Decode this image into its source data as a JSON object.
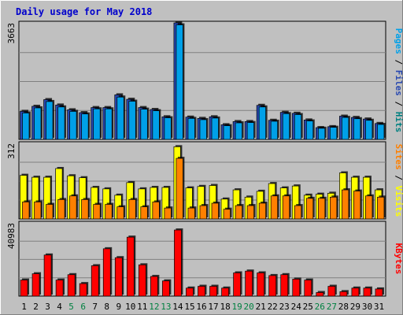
{
  "title": "Daily usage for May 2018",
  "colors": {
    "background": "#c0c0c0",
    "pages": "#00a0e8",
    "files": "#2848b0",
    "hits": "#008080",
    "visits": "#ffff00",
    "sites": "#ff8000",
    "kbytes": "#ff0000",
    "title": "#0000cc",
    "weekend_label": "#008040"
  },
  "chart_data": [
    {
      "type": "bar",
      "panel": "hits-files-pages",
      "ymax_label": "3663",
      "ylim": [
        0,
        3663
      ],
      "right_label": [
        {
          "text": "Pages",
          "color": "#00a0e8"
        },
        {
          "text": " / ",
          "color": "#000000"
        },
        {
          "text": "Files",
          "color": "#2848b0"
        },
        {
          "text": " / ",
          "color": "#000000"
        },
        {
          "text": "Hits",
          "color": "#008080"
        }
      ],
      "series": [
        {
          "name": "Hits",
          "values": [
            880,
            1040,
            1250,
            1080,
            930,
            840,
            1000,
            1000,
            1400,
            1260,
            1000,
            940,
            710,
            3663,
            700,
            660,
            710,
            460,
            560,
            560,
            1070,
            600,
            850,
            820,
            610,
            370,
            400,
            730,
            690,
            640,
            500
          ]
        },
        {
          "name": "Files",
          "values": [
            830,
            990,
            1190,
            1020,
            880,
            800,
            960,
            960,
            1330,
            1200,
            950,
            900,
            680,
            3600,
            660,
            620,
            670,
            430,
            520,
            530,
            1020,
            570,
            810,
            780,
            580,
            350,
            380,
            690,
            650,
            600,
            470
          ]
        }
      ]
    },
    {
      "type": "bar",
      "panel": "visits-sites",
      "ymax_label": "312",
      "ylim": [
        0,
        312
      ],
      "right_label": [
        {
          "text": "Sites",
          "color": "#ff8000"
        },
        {
          "text": " / ",
          "color": "#000000"
        },
        {
          "text": "Visits",
          "color": "#ffff00"
        }
      ],
      "series": [
        {
          "name": "Visits",
          "values": [
            180,
            172,
            172,
            208,
            178,
            170,
            130,
            124,
            98,
            150,
            124,
            130,
            130,
            298,
            128,
            134,
            138,
            82,
            120,
            90,
            114,
            146,
            128,
            136,
            98,
            102,
            106,
            190,
            172,
            172,
            120
          ]
        },
        {
          "name": "Sites",
          "values": [
            70,
            70,
            60,
            80,
            95,
            80,
            60,
            60,
            50,
            80,
            50,
            70,
            45,
            250,
            45,
            55,
            65,
            40,
            55,
            55,
            65,
            95,
            95,
            55,
            85,
            85,
            90,
            120,
            115,
            95,
            90
          ]
        }
      ]
    },
    {
      "type": "bar",
      "panel": "kbytes",
      "ymax_label": "40983",
      "ylim": [
        0,
        40983
      ],
      "right_label": [
        {
          "text": "KBytes",
          "color": "#ff0000"
        }
      ],
      "series": [
        {
          "name": "KBytes",
          "values": [
            9000,
            12500,
            23000,
            9000,
            12000,
            7000,
            17000,
            26500,
            21500,
            33000,
            17500,
            11000,
            8500,
            37000,
            4500,
            5500,
            5500,
            4500,
            13000,
            14000,
            13000,
            11500,
            12000,
            9500,
            9000,
            2000,
            5500,
            2500,
            4500,
            4500,
            4000
          ]
        }
      ]
    }
  ],
  "x_labels": [
    "1",
    "2",
    "3",
    "4",
    "5",
    "6",
    "7",
    "8",
    "9",
    "10",
    "11",
    "12",
    "13",
    "14",
    "15",
    "16",
    "17",
    "18",
    "19",
    "20",
    "21",
    "22",
    "23",
    "24",
    "25",
    "26",
    "27",
    "28",
    "29",
    "30",
    "31"
  ],
  "weekend_days": [
    5,
    6,
    12,
    13,
    19,
    20,
    26,
    27
  ]
}
